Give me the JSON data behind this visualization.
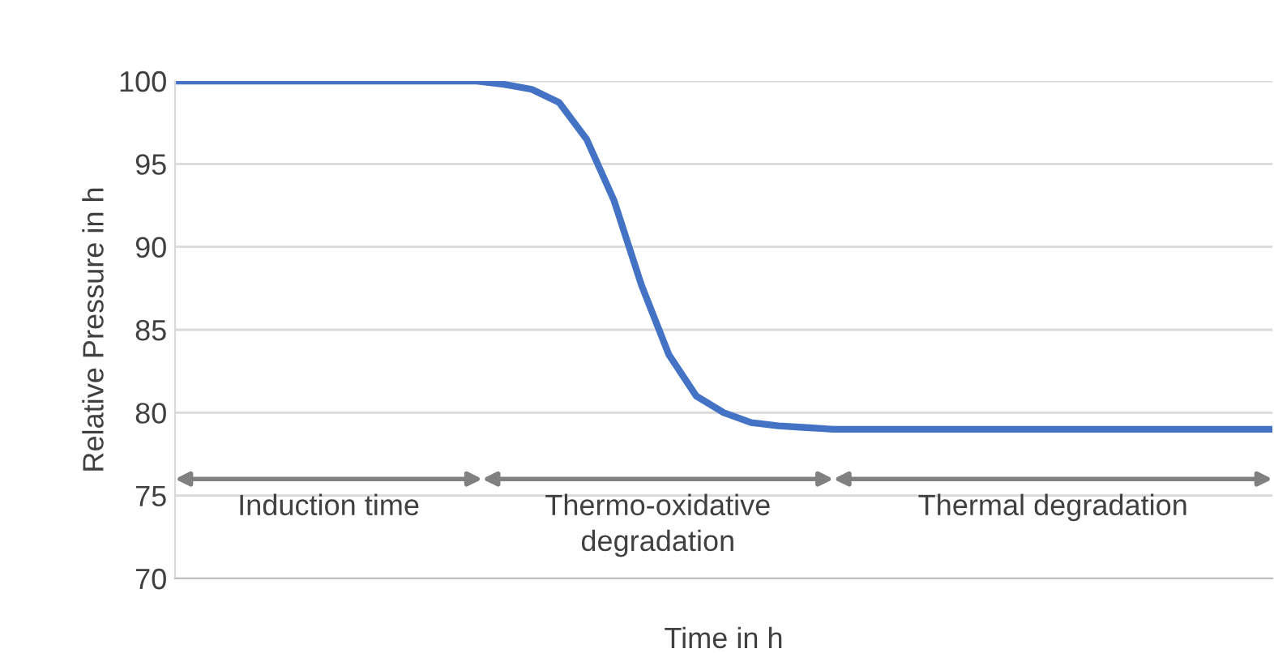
{
  "chart_data": {
    "type": "line",
    "xlabel": "Time in h",
    "ylabel": "Relative Pressure in h",
    "categories": [
      null,
      null,
      null,
      null,
      null,
      null,
      null,
      null,
      null,
      null,
      null,
      null,
      null,
      null,
      null,
      null,
      null,
      null,
      null,
      null,
      null,
      null,
      null,
      null,
      null,
      null,
      null,
      null,
      null,
      null,
      null,
      null,
      null,
      null,
      null,
      null,
      null,
      null,
      null,
      null,
      null
    ],
    "series": [
      {
        "color": "#4472c4",
        "values": [
          100,
          100,
          100,
          100,
          100,
          100,
          100,
          100,
          100,
          100,
          100,
          100,
          99.8,
          99.5,
          98.7,
          96.5,
          92.8,
          87.7,
          83.5,
          81,
          80,
          79.4,
          79.2,
          79.1,
          79,
          79,
          79,
          79,
          79,
          79,
          79,
          79,
          79,
          79,
          79,
          79,
          79,
          79,
          79,
          79,
          79
        ]
      }
    ],
    "ylim": [
      70,
      100
    ],
    "yticks": [
      70,
      75,
      80,
      85,
      90,
      95,
      100
    ],
    "grid": "y",
    "marker": "none",
    "line_style": "solid",
    "annotations": [
      "Induction time",
      "Thermo-oxidative\ndegradation",
      "Thermal degradation"
    ]
  }
}
